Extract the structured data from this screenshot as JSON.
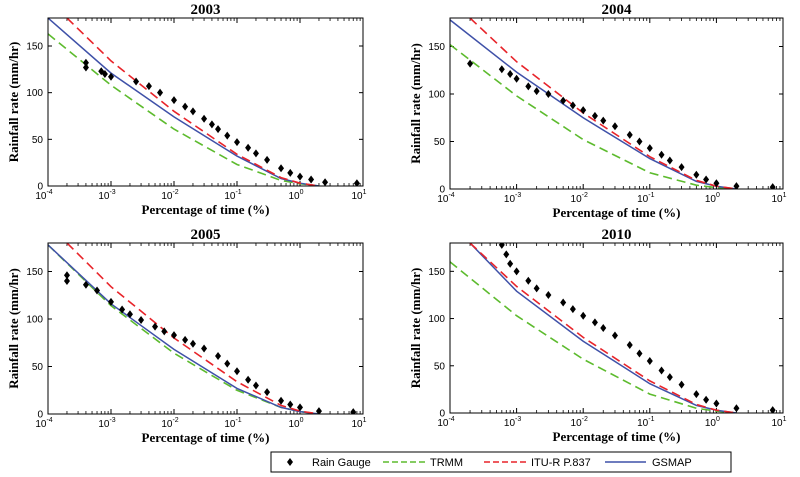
{
  "chart_data": [
    {
      "type": "line",
      "title": "2003",
      "xlabel": "Percentage of time (%)",
      "ylabel": "Rainfall rate (mm/hr)",
      "xscale": "log",
      "xlim": [
        0.0001,
        10
      ],
      "ylim": [
        0,
        180
      ],
      "xticks": [
        -4,
        -3,
        -2,
        -1,
        0,
        1
      ],
      "yticks": [
        0,
        50,
        100,
        150
      ],
      "series": [
        {
          "name": "TRMM",
          "x": [
            0.0001,
            0.001,
            0.01,
            0.1,
            0.5,
            1,
            2
          ],
          "y": [
            163,
            108,
            61,
            23,
            6,
            2.5,
            0
          ]
        },
        {
          "name": "ITU-R P.837",
          "x": [
            0.0002,
            0.001,
            0.01,
            0.1,
            0.5,
            1,
            2
          ],
          "y": [
            180,
            134,
            80,
            34,
            9,
            3,
            0
          ]
        },
        {
          "name": "GSMAP",
          "x": [
            0.0001,
            0.001,
            0.01,
            0.1,
            0.5,
            1,
            2
          ],
          "y": [
            180,
            121,
            74,
            32,
            8,
            3,
            0
          ]
        },
        {
          "name": "Rain Gauge",
          "x": [
            0.0004,
            0.0004,
            0.0007,
            0.0008,
            0.001,
            0.0025,
            0.004,
            0.006,
            0.01,
            0.015,
            0.02,
            0.03,
            0.04,
            0.05,
            0.07,
            0.1,
            0.15,
            0.2,
            0.3,
            0.5,
            0.7,
            1,
            1.5,
            2.5,
            8
          ],
          "y": [
            132,
            127,
            123,
            120,
            117,
            112,
            107,
            100,
            92,
            85,
            80,
            72,
            66,
            61,
            54,
            47,
            41,
            35,
            28,
            19,
            14,
            10,
            7,
            4,
            3
          ]
        }
      ]
    },
    {
      "type": "line",
      "title": "2004",
      "xlabel": "Percentage of time (%)",
      "ylabel": "Rainfall rate (mm/hr)",
      "xscale": "log",
      "xlim": [
        0.0001,
        10
      ],
      "ylim": [
        0,
        180
      ],
      "xticks": [
        -4,
        -3,
        -2,
        -1,
        0,
        1
      ],
      "yticks": [
        0,
        50,
        100,
        150
      ],
      "series": [
        {
          "name": "TRMM",
          "x": [
            0.0001,
            0.001,
            0.01,
            0.1,
            0.5,
            1,
            2
          ],
          "y": [
            152,
            98,
            52,
            17,
            4,
            1.5,
            0
          ]
        },
        {
          "name": "ITU-R P.837",
          "x": [
            0.0002,
            0.001,
            0.01,
            0.1,
            0.5,
            1,
            2
          ],
          "y": [
            180,
            134,
            80,
            34,
            9,
            3,
            0
          ]
        },
        {
          "name": "GSMAP",
          "x": [
            0.0001,
            0.001,
            0.01,
            0.1,
            0.5,
            1,
            2
          ],
          "y": [
            178,
            123,
            75,
            32,
            8,
            3,
            0
          ]
        },
        {
          "name": "Rain Gauge",
          "x": [
            0.0002,
            0.0006,
            0.0008,
            0.001,
            0.0015,
            0.002,
            0.003,
            0.005,
            0.007,
            0.01,
            0.015,
            0.02,
            0.03,
            0.05,
            0.07,
            0.1,
            0.15,
            0.2,
            0.3,
            0.5,
            0.7,
            1,
            2,
            7
          ],
          "y": [
            132,
            126,
            121,
            116,
            108,
            103,
            100,
            93,
            88,
            83,
            77,
            72,
            66,
            57,
            50,
            43,
            36,
            30,
            23,
            15,
            10,
            6,
            3,
            2
          ]
        }
      ]
    },
    {
      "type": "line",
      "title": "2005",
      "xlabel": "Percentage of time (%)",
      "ylabel": "Rainfall rate (mm/hr)",
      "xscale": "log",
      "xlim": [
        0.0001,
        10
      ],
      "ylim": [
        0,
        180
      ],
      "xticks": [
        -4,
        -3,
        -2,
        -1,
        0,
        1
      ],
      "yticks": [
        0,
        50,
        100,
        150
      ],
      "series": [
        {
          "name": "TRMM",
          "x": [
            0.0001,
            0.001,
            0.01,
            0.1,
            0.5,
            1,
            2
          ],
          "y": [
            178,
            114,
            64,
            25,
            7,
            2.5,
            0
          ]
        },
        {
          "name": "ITU-R P.837",
          "x": [
            0.0002,
            0.001,
            0.01,
            0.1,
            0.5,
            1,
            2
          ],
          "y": [
            180,
            134,
            80,
            34,
            9,
            3,
            0
          ]
        },
        {
          "name": "GSMAP",
          "x": [
            0.0001,
            0.001,
            0.01,
            0.1,
            0.5,
            1,
            2
          ],
          "y": [
            178,
            116,
            68,
            27,
            7,
            2.5,
            0
          ]
        },
        {
          "name": "Rain Gauge",
          "x": [
            0.0002,
            0.0002,
            0.0004,
            0.0006,
            0.001,
            0.0015,
            0.002,
            0.003,
            0.005,
            0.007,
            0.01,
            0.015,
            0.02,
            0.03,
            0.05,
            0.07,
            0.1,
            0.15,
            0.2,
            0.3,
            0.5,
            0.7,
            1,
            2,
            7
          ],
          "y": [
            146,
            140,
            136,
            130,
            118,
            110,
            105,
            99,
            92,
            87,
            83,
            78,
            74,
            69,
            61,
            53,
            45,
            36,
            30,
            23,
            14,
            10,
            7,
            3,
            2
          ]
        }
      ]
    },
    {
      "type": "line",
      "title": "2010",
      "xlabel": "Percentage of time (%)",
      "ylabel": "Rainfall rate (mm/hr)",
      "xscale": "log",
      "xlim": [
        0.0001,
        10
      ],
      "ylim": [
        0,
        180
      ],
      "xticks": [
        -4,
        -3,
        -2,
        -1,
        0,
        1
      ],
      "yticks": [
        0,
        50,
        100,
        150
      ],
      "series": [
        {
          "name": "TRMM",
          "x": [
            0.0001,
            0.001,
            0.01,
            0.1,
            0.5,
            1,
            2
          ],
          "y": [
            160,
            103,
            57,
            20,
            5,
            2,
            0
          ]
        },
        {
          "name": "ITU-R P.837",
          "x": [
            0.0002,
            0.001,
            0.01,
            0.1,
            0.5,
            1,
            2
          ],
          "y": [
            180,
            134,
            80,
            34,
            9,
            3,
            0
          ]
        },
        {
          "name": "GSMAP",
          "x": [
            0.0002,
            0.001,
            0.01,
            0.1,
            0.5,
            1,
            2
          ],
          "y": [
            180,
            129,
            76,
            31,
            8,
            3,
            0
          ]
        },
        {
          "name": "Rain Gauge",
          "x": [
            0.0006,
            0.0007,
            0.0008,
            0.001,
            0.0015,
            0.002,
            0.003,
            0.005,
            0.007,
            0.01,
            0.015,
            0.02,
            0.03,
            0.05,
            0.07,
            0.1,
            0.15,
            0.2,
            0.3,
            0.5,
            0.7,
            1,
            2,
            7
          ],
          "y": [
            178,
            168,
            158,
            150,
            140,
            132,
            125,
            117,
            110,
            103,
            96,
            90,
            82,
            72,
            63,
            55,
            45,
            38,
            30,
            20,
            14,
            10,
            5,
            3
          ]
        }
      ]
    }
  ],
  "legend": {
    "placement": "bottom-center",
    "entries": [
      {
        "name": "Rain Gauge",
        "color": "#000000",
        "style": "diamond"
      },
      {
        "name": "TRMM",
        "color": "#5dbb2e",
        "style": "dashed"
      },
      {
        "name": "ITU-R P.837",
        "color": "#e8242a",
        "style": "dashed"
      },
      {
        "name": "GSMAP",
        "color": "#3f51a8",
        "style": "solid"
      }
    ]
  },
  "colors": {
    "TRMM": "#5dbb2e",
    "ITU-R P.837": "#e8242a",
    "GSMAP": "#3f51a8",
    "Rain Gauge": "#000000"
  }
}
